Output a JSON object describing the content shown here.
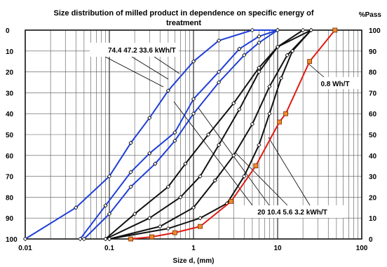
{
  "chart_data": {
    "type": "line",
    "title_lines": [
      "Size distribution of milled product in dependence on specific energy of",
      "treatment"
    ],
    "xlabel": "Size d, (mm)",
    "x_scale": "log",
    "xlim": [
      0.01,
      100
    ],
    "x_ticks": [
      "0.01",
      "0.1",
      "1",
      "10",
      "100"
    ],
    "ylim": [
      0,
      100
    ],
    "left_ticks": [
      "0",
      "10",
      "20",
      "30",
      "40",
      "50",
      "60",
      "70",
      "80",
      "90",
      "100"
    ],
    "right_ticks": [
      "100",
      "90",
      "80",
      "70",
      "60",
      "50",
      "40",
      "30",
      "20",
      "10",
      "0"
    ],
    "right_axis_label": "%Pass",
    "grid": true,
    "annotations": {
      "top_left": "74.4  47.2  33.6 kWh/T",
      "right": "0.8  Wh/T",
      "bottom": "20  10.4  5.6    3.2 kWh/T"
    },
    "series": [
      {
        "energy": "74.4",
        "color": "#1f3fd6",
        "marker": "diamond",
        "x": [
          0.01,
          0.04,
          0.1,
          0.18,
          0.3,
          0.5,
          1,
          2,
          5,
          10
        ],
        "y": [
          0,
          15,
          30,
          46,
          58,
          71,
          85,
          95,
          100,
          100
        ]
      },
      {
        "energy": "47.2",
        "color": "#1f3fd6",
        "marker": "diamond",
        "x": [
          0.045,
          0.09,
          0.18,
          0.3,
          0.6,
          1,
          2,
          3.5,
          6,
          10
        ],
        "y": [
          0,
          16,
          32,
          41,
          51,
          67,
          80,
          91,
          97,
          100
        ]
      },
      {
        "energy": "33.6",
        "color": "#1f3fd6",
        "marker": "diamond",
        "x": [
          0.05,
          0.1,
          0.18,
          0.35,
          0.6,
          1,
          2,
          4,
          6,
          10
        ],
        "y": [
          0,
          12,
          25,
          36,
          47,
          60,
          75,
          88,
          94,
          100
        ]
      },
      {
        "energy": "20",
        "color": "#111111",
        "marker": "diamond",
        "x": [
          0.09,
          0.2,
          0.5,
          0.8,
          1.5,
          3,
          6,
          10,
          20
        ],
        "y": [
          0,
          12,
          25,
          36,
          50,
          65,
          82,
          92,
          100
        ]
      },
      {
        "energy": "10.4",
        "color": "#111111",
        "marker": "diamond",
        "x": [
          0.09,
          0.3,
          0.7,
          1.2,
          2,
          3.5,
          6,
          10,
          25
        ],
        "y": [
          0,
          10,
          20,
          30,
          45,
          62,
          80,
          92,
          100
        ]
      },
      {
        "energy": "5.6",
        "color": "#111111",
        "marker": "diamond",
        "x": [
          0.1,
          0.4,
          1,
          1.8,
          3,
          5,
          8,
          13,
          25
        ],
        "y": [
          0,
          6,
          15,
          28,
          40,
          55,
          73,
          88,
          100
        ]
      },
      {
        "energy": "3.2",
        "color": "#111111",
        "marker": "diamond",
        "x": [
          0.1,
          0.5,
          1.2,
          2.5,
          4,
          6,
          8,
          11,
          15,
          25
        ],
        "y": [
          0,
          5,
          10,
          17,
          30,
          45,
          60,
          77,
          90,
          100
        ]
      },
      {
        "energy": "0.8",
        "color": "#e01b12",
        "marker": "square",
        "x": [
          0.18,
          0.32,
          0.6,
          1.2,
          2.8,
          5.5,
          10.5,
          12.5,
          24,
          48
        ],
        "y": [
          0,
          1,
          3,
          6,
          18,
          35,
          56,
          60,
          85,
          100
        ]
      }
    ]
  }
}
